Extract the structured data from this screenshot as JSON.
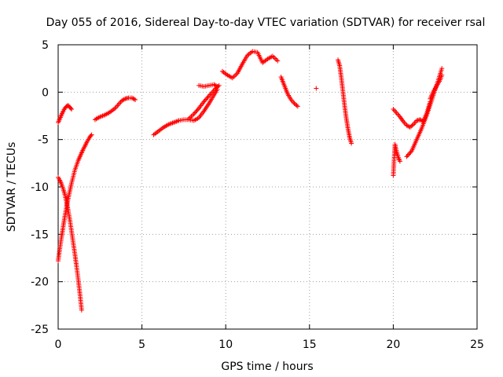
{
  "chart_data": {
    "type": "scatter",
    "title": "Day 055 of 2016, Sidereal Day-to-day VTEC variation (SDTVAR) for receiver rsal",
    "xlabel": "GPS time / hours",
    "ylabel": "SDTVAR / TECUs",
    "xlim": [
      0,
      25
    ],
    "ylim": [
      -25,
      5
    ],
    "xticks": [
      0,
      5,
      10,
      15,
      20,
      25
    ],
    "yticks": [
      -25,
      -20,
      -15,
      -10,
      -5,
      0,
      5
    ],
    "grid": true,
    "marker": "+",
    "color": "#ff0000",
    "arcs": [
      {
        "name": "arc-early-upper",
        "x": [
          0.0,
          0.1,
          0.2,
          0.3,
          0.4,
          0.5,
          0.6,
          0.7,
          0.8
        ],
        "y": [
          -3.2,
          -2.8,
          -2.4,
          -2.0,
          -1.7,
          -1.5,
          -1.4,
          -1.6,
          -1.8
        ]
      },
      {
        "name": "arc-early-descending",
        "x": [
          0.0,
          0.1,
          0.2,
          0.3,
          0.4,
          0.5,
          0.6,
          0.7,
          0.8,
          0.9,
          1.0,
          1.1,
          1.2,
          1.3,
          1.4
        ],
        "y": [
          -9.0,
          -9.3,
          -9.7,
          -10.2,
          -10.8,
          -11.6,
          -12.5,
          -13.5,
          -14.7,
          -15.9,
          -17.1,
          -18.4,
          -19.8,
          -21.3,
          -23.0
        ]
      },
      {
        "name": "arc-early-ascending",
        "x": [
          0.0,
          0.1,
          0.2,
          0.3,
          0.4,
          0.5,
          0.6,
          0.7,
          0.8,
          0.9,
          1.0,
          1.1,
          1.2,
          1.3,
          1.4,
          1.5,
          1.6,
          1.7,
          1.8,
          1.9,
          2.0
        ],
        "y": [
          -17.8,
          -16.5,
          -15.3,
          -14.2,
          -13.1,
          -12.1,
          -11.2,
          -10.4,
          -9.6,
          -8.9,
          -8.2,
          -7.7,
          -7.2,
          -6.8,
          -6.4,
          -6.0,
          -5.7,
          -5.3,
          -5.0,
          -4.7,
          -4.5
        ]
      },
      {
        "name": "arc-morning",
        "x": [
          2.2,
          2.5,
          2.8,
          3.1,
          3.4,
          3.6,
          3.8,
          4.0,
          4.2,
          4.4,
          4.6
        ],
        "y": [
          -2.9,
          -2.6,
          -2.4,
          -2.1,
          -1.7,
          -1.3,
          -0.9,
          -0.7,
          -0.6,
          -0.6,
          -0.8
        ]
      },
      {
        "name": "arc-midday-lower",
        "x": [
          5.7,
          6.0,
          6.3,
          6.6,
          6.9,
          7.2,
          7.5,
          7.8,
          8.1,
          8.4,
          8.7,
          9.0,
          9.3,
          9.5
        ],
        "y": [
          -4.5,
          -4.1,
          -3.7,
          -3.4,
          -3.2,
          -3.0,
          -2.9,
          -2.9,
          -3.0,
          -2.7,
          -2.0,
          -1.2,
          -0.3,
          0.3
        ]
      },
      {
        "name": "arc-midday-upper",
        "x": [
          7.8,
          8.1,
          8.4,
          8.7,
          9.0,
          9.2,
          9.4,
          9.6
        ],
        "y": [
          -2.8,
          -2.3,
          -1.7,
          -1.0,
          -0.4,
          0.0,
          0.4,
          0.7
        ]
      },
      {
        "name": "arc-midday-loop",
        "x": [
          8.4,
          8.7,
          9.0,
          9.3,
          9.5
        ],
        "y": [
          0.7,
          0.6,
          0.7,
          0.8,
          0.6
        ]
      },
      {
        "name": "arc-noon-peak",
        "x": [
          9.8,
          10.1,
          10.4,
          10.7,
          11.0,
          11.3,
          11.6,
          11.9,
          12.2,
          12.5,
          12.8,
          13.1
        ],
        "y": [
          2.2,
          1.8,
          1.5,
          2.0,
          3.0,
          3.9,
          4.3,
          4.2,
          3.1,
          3.5,
          3.8,
          3.3
        ]
      },
      {
        "name": "arc-afternoon",
        "x": [
          13.3,
          13.5,
          13.7,
          13.9,
          14.1,
          14.3
        ],
        "y": [
          1.6,
          0.7,
          -0.2,
          -0.8,
          -1.2,
          -1.5
        ]
      },
      {
        "name": "arc-isolated",
        "x": [
          15.4
        ],
        "y": [
          0.4
        ]
      },
      {
        "name": "arc-evening",
        "x": [
          16.7,
          16.8,
          16.9,
          17.0,
          17.1,
          17.2,
          17.3,
          17.4,
          17.5
        ],
        "y": [
          3.4,
          2.8,
          1.5,
          0.0,
          -1.5,
          -2.8,
          -3.9,
          -4.8,
          -5.4
        ]
      },
      {
        "name": "arc-night-lower",
        "x": [
          20.0,
          20.1,
          20.2,
          20.3,
          20.4
        ],
        "y": [
          -8.8,
          -5.5,
          -6.3,
          -6.9,
          -7.3
        ]
      },
      {
        "name": "arc-night-upper",
        "x": [
          20.0,
          20.2,
          20.4,
          20.6,
          20.8,
          21.0,
          21.2,
          21.4,
          21.6,
          21.8,
          22.0,
          22.2
        ],
        "y": [
          -1.8,
          -2.2,
          -2.6,
          -3.1,
          -3.5,
          -3.7,
          -3.4,
          -3.0,
          -2.9,
          -3.1,
          -2.2,
          -1.0
        ]
      },
      {
        "name": "arc-night-rise",
        "x": [
          20.8,
          21.1,
          21.4,
          21.7,
          22.0,
          22.3,
          22.6,
          22.9
        ],
        "y": [
          -6.8,
          -6.2,
          -5.0,
          -3.8,
          -2.4,
          -0.8,
          0.8,
          2.5
        ]
      },
      {
        "name": "arc-night-end",
        "x": [
          22.2,
          22.4,
          22.6,
          22.8,
          22.9
        ],
        "y": [
          -0.7,
          0.1,
          0.7,
          1.3,
          1.8
        ]
      }
    ]
  }
}
